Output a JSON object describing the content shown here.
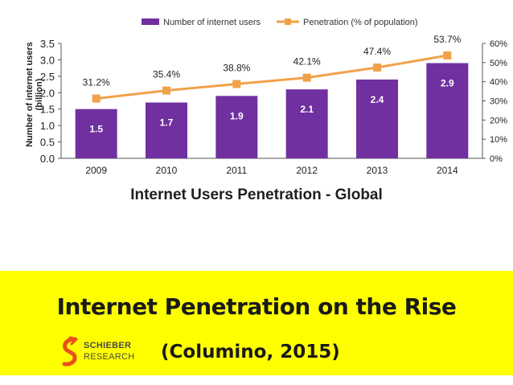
{
  "chart_data": {
    "type": "bar+line",
    "categories": [
      "2009",
      "2010",
      "2011",
      "2012",
      "2013",
      "2014"
    ],
    "series": [
      {
        "name": "Number of internet users",
        "type": "bar",
        "axis": "left",
        "values": [
          1.5,
          1.7,
          1.9,
          2.1,
          2.4,
          2.9
        ],
        "labels": [
          "1.5",
          "1.7",
          "1.9",
          "2.1",
          "2.4",
          "2.9"
        ],
        "color": "#7030a0"
      },
      {
        "name": "Penetration (% of population)",
        "type": "line",
        "axis": "right",
        "values": [
          31.2,
          35.4,
          38.8,
          42.1,
          47.4,
          53.7
        ],
        "labels": [
          "31.2%",
          "35.4%",
          "38.8%",
          "42.1%",
          "47.4%",
          "53.7%"
        ],
        "color": "#f0a24a"
      }
    ],
    "ylabel": "Number of internet users (billion)",
    "ylim": [
      0,
      3.5
    ],
    "yticks": [
      "0.0",
      "0.5",
      "1.0",
      "1.5",
      "2.0",
      "2.5",
      "3.0",
      "3.5"
    ],
    "y2lim": [
      0,
      60
    ],
    "y2ticks": [
      "0%",
      "10%",
      "20%",
      "30%",
      "40%",
      "50%",
      "60%"
    ],
    "legend": "top",
    "grid": false,
    "subtitle": "Internet Users Penetration - Global"
  },
  "banner": {
    "title": "Internet Penetration on the Rise",
    "citation": "(Columino, 2015)",
    "background": "#ffff00"
  },
  "logo": {
    "name": "SCHIEBER",
    "sub": "RESEARCH",
    "color": "#e8501e",
    "icon": "schieber-s-logo-icon"
  }
}
